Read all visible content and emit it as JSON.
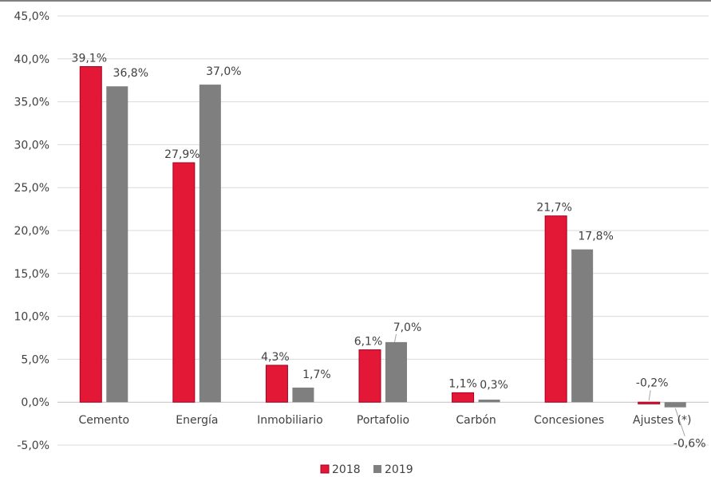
{
  "chart_data": {
    "type": "bar",
    "categories": [
      "Cemento",
      "Energía",
      "Inmobiliario",
      "Portafolio",
      "Carbón",
      "Concesiones",
      "Ajustes (*)"
    ],
    "series": [
      {
        "name": "2018",
        "color": "#E31837",
        "values": [
          39.1,
          27.9,
          4.3,
          6.1,
          1.1,
          21.7,
          -0.2
        ],
        "labels": [
          "39,1%",
          "27,9%",
          "4,3%",
          "6,1%",
          "1,1%",
          "21,7%",
          "-0,2%"
        ]
      },
      {
        "name": "2019",
        "color": "#7F7F7F",
        "values": [
          36.8,
          37.0,
          1.7,
          7.0,
          0.3,
          17.8,
          -0.6
        ],
        "labels": [
          "36,8%",
          "37,0%",
          "1,7%",
          "7,0%",
          "0,3%",
          "17,8%",
          "-0,6%"
        ]
      }
    ],
    "yticks": [
      {
        "value": 45,
        "label": "45,0%"
      },
      {
        "value": 40,
        "label": "40,0%"
      },
      {
        "value": 35,
        "label": "35,0%"
      },
      {
        "value": 30,
        "label": "30,0%"
      },
      {
        "value": 25,
        "label": "25,0%"
      },
      {
        "value": 20,
        "label": "20,0%"
      },
      {
        "value": 15,
        "label": "15,0%"
      },
      {
        "value": 10,
        "label": "10,0%"
      },
      {
        "value": 5,
        "label": "5,0%"
      },
      {
        "value": 0,
        "label": "0,0%"
      },
      {
        "value": -5,
        "label": "-5,0%"
      }
    ],
    "ylim": [
      -5,
      45
    ],
    "grid": true,
    "legend": "bottom",
    "title": "",
    "xlabel": "",
    "ylabel": ""
  }
}
